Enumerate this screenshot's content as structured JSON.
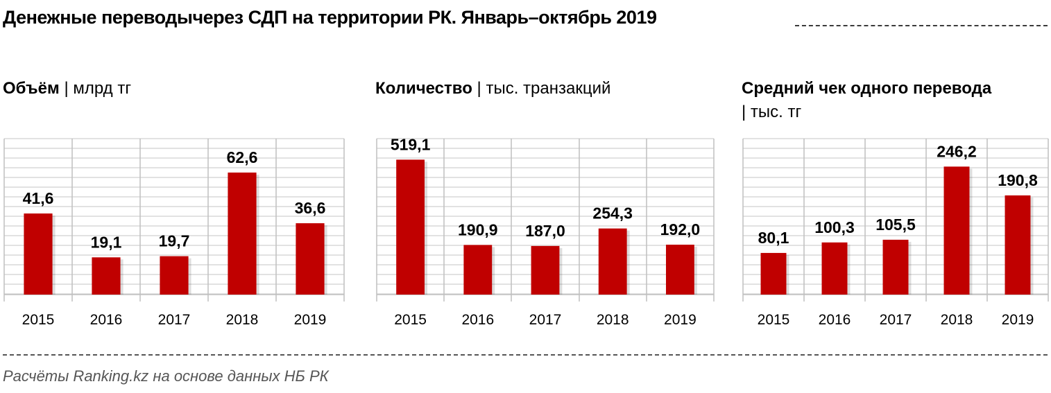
{
  "title": "Денежные переводычерез СДП на территории РК. Январь–октябрь 2019",
  "source": "Расчёты Ranking.kz на основе данных НБ РК",
  "colors": {
    "bar": "#C00000",
    "grid": "#d9d9d9",
    "divider": "#bfbfbf"
  },
  "chart_data": [
    {
      "type": "bar",
      "title": "Объём",
      "unit": "| млрд тг",
      "categories": [
        "2015",
        "2016",
        "2017",
        "2018",
        "2019"
      ],
      "values": [
        41.6,
        19.1,
        19.7,
        62.6,
        36.6
      ],
      "value_labels": [
        "41,6",
        "19,1",
        "19,7",
        "62,6",
        "36,6"
      ],
      "ylim": [
        0,
        80
      ],
      "grid": true
    },
    {
      "type": "bar",
      "title": "Количество",
      "unit": "| тыс. транзакций",
      "categories": [
        "2015",
        "2016",
        "2017",
        "2018",
        "2019"
      ],
      "values": [
        519.1,
        190.9,
        187.0,
        254.3,
        192.0
      ],
      "value_labels": [
        "519,1",
        "190,9",
        "187,0",
        "254,3",
        "192,0"
      ],
      "ylim": [
        0,
        600
      ],
      "grid": true
    },
    {
      "type": "bar",
      "title": "Средний чек одного перевода",
      "unit": "| тыс. тг",
      "categories": [
        "2015",
        "2016",
        "2017",
        "2018",
        "2019"
      ],
      "values": [
        80.1,
        100.3,
        105.5,
        246.2,
        190.8
      ],
      "value_labels": [
        "80,1",
        "100,3",
        "105,5",
        "246,2",
        "190,8"
      ],
      "ylim": [
        0,
        300
      ],
      "grid": true
    }
  ]
}
